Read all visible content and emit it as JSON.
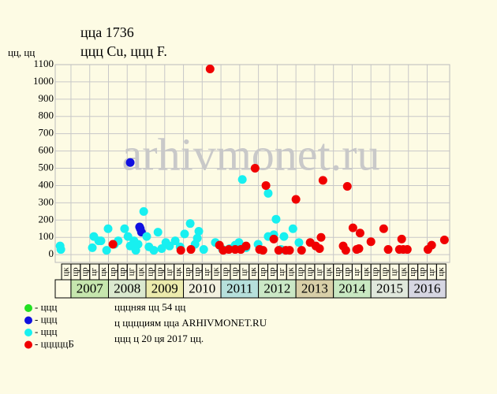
{
  "chart_data": {
    "type": "scatter",
    "title": "ццa 1736",
    "subtitle": "ццц Cu, ццц F.",
    "y_label": "цц, цц",
    "watermark": "arhivmonet.ru",
    "xlim": [
      2006.58,
      2017.1
    ],
    "xticks": [
      2007,
      2007.5,
      2008,
      2008.5,
      2009,
      2009.5,
      2010,
      2010.5,
      2011,
      2011.5,
      2012,
      2012.5,
      2013,
      2013.5,
      2014,
      2014.5,
      2015,
      2015.5,
      2016,
      2016.5
    ],
    "ylim": [
      -45,
      1100
    ],
    "yticks": [
      0,
      100,
      200,
      300,
      400,
      500,
      600,
      700,
      800,
      900,
      1000,
      1100
    ],
    "grid": true,
    "quarter_start": 2006.75,
    "quarters": [
      "цк",
      "цр",
      "цр",
      "цг",
      "цк",
      "цр",
      "цр",
      "цг",
      "цк",
      "цр",
      "цр",
      "цг",
      "цк",
      "цр",
      "цр",
      "цг",
      "цк",
      "цр",
      "цр",
      "цг",
      "цк",
      "цр",
      "цр",
      "цг",
      "цк",
      "цр",
      "цр",
      "цг",
      "цк",
      "цр",
      "цр",
      "цг",
      "цк",
      "цр",
      "цр",
      "цг",
      "цк",
      "цр",
      "цр",
      "цг",
      "цк"
    ],
    "years": [
      null,
      "2007",
      "2008",
      "2009",
      "2010",
      "2011",
      "2012",
      "2013",
      "2014",
      "2015",
      "2016"
    ],
    "year_starts": [
      2006,
      2007,
      2008,
      2009,
      2010,
      2011,
      2012,
      2013,
      2014,
      2015,
      2016
    ],
    "year_colors": [
      "#fdfbe4",
      "#c6e6ae",
      "#dbe9cf",
      "#ecebad",
      "#f3f1e0",
      "#b6e0dc",
      "#cbe8c6",
      "#d8cfa8",
      "#c9e8c2",
      "#e0e8dc",
      "#d6d6e2"
    ],
    "series": [
      {
        "name": "- ццц",
        "color": "#22e022",
        "x": [],
        "values": []
      },
      {
        "name": "- ццц",
        "color": "#1010e0",
        "x": [
          2008.58,
          2008.85,
          2008.88,
          2008.83
        ],
        "values": [
          533,
          150,
          130,
          160
        ]
      },
      {
        "name": "- ццц",
        "color": "#18f0f0",
        "x": [
          2006.71,
          2006.73,
          2007.57,
          2007.61,
          2007.74,
          2007.8,
          2007.99,
          2007.95,
          2008.16,
          2008.26,
          2008.43,
          2008.52,
          2008.58,
          2008.68,
          2008.79,
          2008.73,
          2008.94,
          2009.02,
          2009.08,
          2009.21,
          2009.32,
          2009.42,
          2009.53,
          2009.63,
          2009.78,
          2009.91,
          2010.03,
          2010.18,
          2010.31,
          2010.41,
          2010.37,
          2010.54,
          2010.85,
          2011.04,
          2011.23,
          2011.38,
          2011.48,
          2011.57,
          2011.67,
          2011.99,
          2012.26,
          2012.26,
          2012.41,
          2012.47,
          2012.6,
          2012.68,
          2012.92,
          2013.08
        ],
        "values": [
          50,
          30,
          40,
          105,
          80,
          80,
          150,
          25,
          60,
          80,
          150,
          105,
          50,
          80,
          60,
          25,
          250,
          105,
          45,
          25,
          130,
          35,
          70,
          50,
          80,
          45,
          120,
          180,
          60,
          135,
          95,
          30,
          70,
          30,
          35,
          55,
          70,
          435,
          40,
          60,
          105,
          355,
          115,
          205,
          30,
          105,
          150,
          70
        ]
      },
      {
        "name": "- цццццБ",
        "color": "#f00000",
        "x": [
          2008.12,
          2009.93,
          2010.2,
          2010.71,
          2010.96,
          2011.06,
          2011.21,
          2011.38,
          2011.53,
          2011.67,
          2011.91,
          2012.03,
          2012.12,
          2012.2,
          2012.41,
          2012.54,
          2012.73,
          2012.83,
          2013.0,
          2013.15,
          2013.38,
          2013.53,
          2013.63,
          2013.67,
          2013.72,
          2014.26,
          2014.33,
          2014.37,
          2014.52,
          2014.62,
          2014.68,
          2014.71,
          2015.0,
          2015.34,
          2015.46,
          2015.76,
          2015.82,
          2015.86,
          2015.97,
          2016.52,
          2016.62,
          2016.96
        ],
        "values": [
          60,
          25,
          30,
          1075,
          55,
          25,
          30,
          30,
          30,
          50,
          500,
          30,
          25,
          400,
          90,
          25,
          25,
          25,
          320,
          25,
          70,
          50,
          35,
          100,
          430,
          50,
          25,
          395,
          155,
          30,
          35,
          125,
          75,
          150,
          30,
          30,
          90,
          30,
          30,
          30,
          55,
          85
        ]
      }
    ],
    "notes": [
      "цццняя цц 54 цц",
      "ц цццциям цца ARHIVMONET.RU",
      "ццц ц 20 ця 2017 цц."
    ]
  }
}
